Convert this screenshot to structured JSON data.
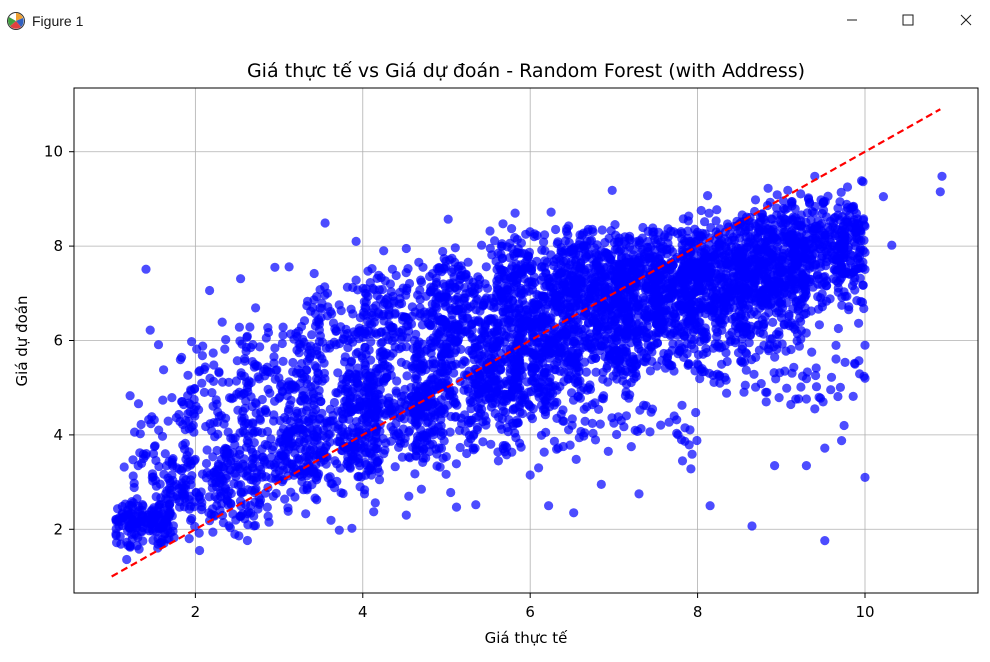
{
  "window": {
    "title": "Figure 1",
    "icon": "matplotlib-figure-icon",
    "controls": [
      "minimize-icon",
      "maximize-icon",
      "close-icon"
    ]
  },
  "chart_data": {
    "type": "scatter",
    "title": "Giá thực tế vs Giá dự đoán - Random Forest (with Address)",
    "xlabel": "Giá thực tế",
    "ylabel": "Giá dự đoán",
    "xlim": [
      0.55,
      11.35
    ],
    "ylim": [
      0.65,
      11.35
    ],
    "xticks": [
      2,
      4,
      6,
      8,
      10
    ],
    "yticks": [
      2,
      4,
      6,
      8,
      10
    ],
    "xtick_labels": [
      "2",
      "4",
      "6",
      "8",
      "10"
    ],
    "ytick_labels": [
      "2",
      "4",
      "6",
      "8",
      "10"
    ],
    "grid": true,
    "point_color": "#0000ff",
    "point_alpha": 0.7,
    "reference_line": {
      "x": [
        1.0,
        10.9
      ],
      "y": [
        1.0,
        10.9
      ],
      "color": "#ff0000",
      "style": "dashed"
    },
    "series": [
      {
        "points": [
          [
            1.41,
            7.51
          ],
          [
            1.46,
            6.22
          ],
          [
            1.56,
            5.91
          ],
          [
            1.22,
            4.83
          ],
          [
            1.32,
            4.66
          ],
          [
            1.15,
            3.32
          ],
          [
            1.38,
            3.5
          ],
          [
            1.5,
            3.6
          ],
          [
            1.25,
            2.48
          ],
          [
            1.05,
            2.21
          ],
          [
            1.05,
            1.9
          ],
          [
            1.22,
            1.62
          ],
          [
            1.18,
            1.36
          ],
          [
            1.62,
            5.38
          ],
          [
            1.72,
            4.79
          ],
          [
            1.91,
            4.45
          ],
          [
            2.17,
            7.06
          ],
          [
            2.32,
            6.39
          ],
          [
            2.54,
            7.31
          ],
          [
            2.22,
            5.48
          ],
          [
            2.62,
            6.09
          ],
          [
            2.72,
            6.69
          ],
          [
            2.95,
            7.55
          ],
          [
            3.12,
            7.56
          ],
          [
            3.42,
            7.42
          ],
          [
            3.45,
            6.93
          ],
          [
            3.2,
            6.15
          ],
          [
            2.22,
            4.26
          ],
          [
            2.14,
            3.68
          ],
          [
            1.88,
            3.82
          ],
          [
            2.42,
            3.26
          ],
          [
            2.05,
            1.55
          ],
          [
            2.52,
            1.86
          ],
          [
            2.88,
            2.15
          ],
          [
            3.62,
            2.19
          ],
          [
            3.72,
            1.98
          ],
          [
            3.87,
            2.02
          ],
          [
            4.02,
            2.75
          ],
          [
            3.55,
            8.49
          ],
          [
            4.13,
            2.37
          ],
          [
            4.15,
            2.56
          ],
          [
            4.2,
            3.05
          ],
          [
            4.52,
            2.3
          ],
          [
            4.55,
            2.7
          ],
          [
            4.7,
            2.85
          ],
          [
            5.05,
            2.78
          ],
          [
            5.12,
            2.47
          ],
          [
            5.35,
            2.52
          ],
          [
            5.62,
            3.45
          ],
          [
            4.25,
            7.9
          ],
          [
            4.52,
            7.95
          ],
          [
            4.72,
            7.55
          ],
          [
            3.92,
            7.28
          ],
          [
            3.92,
            8.1
          ],
          [
            5.02,
            8.57
          ],
          [
            5.42,
            8.02
          ],
          [
            5.52,
            8.32
          ],
          [
            5.82,
            8.7
          ],
          [
            6.0,
            3.15
          ],
          [
            6.1,
            3.3
          ],
          [
            6.22,
            2.5
          ],
          [
            6.52,
            2.35
          ],
          [
            6.85,
            2.95
          ],
          [
            7.3,
            2.75
          ],
          [
            6.55,
            3.48
          ],
          [
            7.72,
            4.4
          ],
          [
            7.75,
            4.32
          ],
          [
            7.85,
            4.15
          ],
          [
            7.0,
            4.25
          ],
          [
            7.82,
            3.45
          ],
          [
            7.92,
            3.28
          ],
          [
            8.15,
            2.5
          ],
          [
            8.65,
            2.07
          ],
          [
            9.3,
            3.35
          ],
          [
            9.52,
            1.76
          ],
          [
            8.92,
            3.35
          ],
          [
            9.52,
            3.72
          ],
          [
            9.72,
            3.88
          ],
          [
            10.0,
            3.1
          ],
          [
            10.0,
            5.2
          ],
          [
            10.0,
            5.9
          ],
          [
            10.32,
            8.02
          ],
          [
            10.9,
            9.15
          ],
          [
            10.92,
            9.48
          ],
          [
            10.22,
            9.05
          ],
          [
            10.0,
            8.42
          ],
          [
            9.4,
            9.48
          ],
          [
            8.12,
            9.07
          ],
          [
            6.25,
            8.72
          ],
          [
            6.98,
            9.18
          ],
          [
            9.75,
            4.2
          ],
          [
            9.5,
            4.7
          ],
          [
            8.82,
            4.7
          ],
          [
            9.88,
            5.5
          ],
          [
            9.6,
            5.22
          ],
          [
            9.4,
            4.55
          ],
          [
            1.95,
            4.93
          ],
          [
            1.85,
            4.22
          ]
        ]
      }
    ],
    "clusters": [
      {
        "x": [
          1.05,
          1.7
        ],
        "y": [
          1.5,
          2.8
        ],
        "n": 150
      },
      {
        "x": [
          1.25,
          2.0
        ],
        "y": [
          2.0,
          4.8
        ],
        "n": 70
      },
      {
        "x": [
          1.6,
          2.8
        ],
        "y": [
          1.7,
          3.8
        ],
        "n": 150
      },
      {
        "x": [
          1.8,
          2.8
        ],
        "y": [
          3.3,
          6.3
        ],
        "n": 90
      },
      {
        "x": [
          2.2,
          3.5
        ],
        "y": [
          2.2,
          4.6
        ],
        "n": 200
      },
      {
        "x": [
          2.5,
          3.5
        ],
        "y": [
          4.0,
          6.6
        ],
        "n": 110
      },
      {
        "x": [
          3.0,
          4.2
        ],
        "y": [
          2.6,
          5.4
        ],
        "n": 260
      },
      {
        "x": [
          3.3,
          4.4
        ],
        "y": [
          4.6,
          7.3
        ],
        "n": 150
      },
      {
        "x": [
          3.8,
          5.0
        ],
        "y": [
          3.0,
          6.2
        ],
        "n": 300
      },
      {
        "x": [
          4.0,
          5.2
        ],
        "y": [
          5.2,
          7.8
        ],
        "n": 180
      },
      {
        "x": [
          4.6,
          5.9
        ],
        "y": [
          3.2,
          6.5
        ],
        "n": 300
      },
      {
        "x": [
          4.8,
          6.0
        ],
        "y": [
          5.5,
          8.2
        ],
        "n": 240
      },
      {
        "x": [
          5.3,
          6.6
        ],
        "y": [
          4.0,
          7.0
        ],
        "n": 320
      },
      {
        "x": [
          5.6,
          6.8
        ],
        "y": [
          6.0,
          8.5
        ],
        "n": 250
      },
      {
        "x": [
          6.0,
          7.3
        ],
        "y": [
          4.5,
          7.5
        ],
        "n": 320
      },
      {
        "x": [
          6.3,
          7.6
        ],
        "y": [
          6.2,
          8.6
        ],
        "n": 250
      },
      {
        "x": [
          6.8,
          8.0
        ],
        "y": [
          5.0,
          7.9
        ],
        "n": 300
      },
      {
        "x": [
          7.0,
          8.2
        ],
        "y": [
          6.5,
          8.6
        ],
        "n": 240
      },
      {
        "x": [
          7.5,
          8.6
        ],
        "y": [
          5.2,
          8.2
        ],
        "n": 260
      },
      {
        "x": [
          7.8,
          9.0
        ],
        "y": [
          6.5,
          8.9
        ],
        "n": 250
      },
      {
        "x": [
          8.2,
          9.3
        ],
        "y": [
          5.5,
          8.7
        ],
        "n": 260
      },
      {
        "x": [
          8.5,
          10.0
        ],
        "y": [
          6.0,
          9.3
        ],
        "n": 340
      },
      {
        "x": [
          9.0,
          10.0
        ],
        "y": [
          7.0,
          9.4
        ],
        "n": 220
      },
      {
        "x": [
          6.1,
          8.0
        ],
        "y": [
          3.5,
          5.0
        ],
        "n": 60
      },
      {
        "x": [
          8.0,
          10.0
        ],
        "y": [
          4.5,
          6.0
        ],
        "n": 60
      }
    ]
  }
}
